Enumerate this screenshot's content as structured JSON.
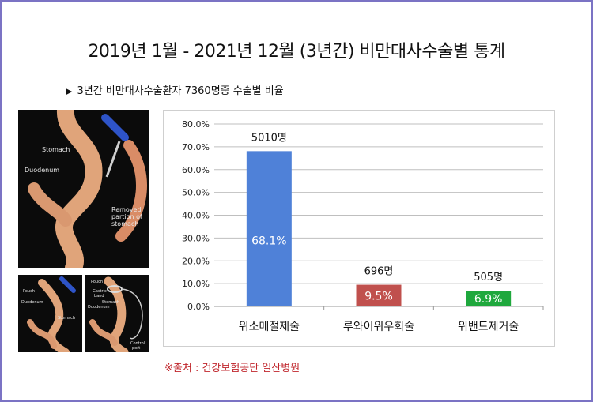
{
  "title": "2019년 1월 - 2021년 12월 (3년간) 비만대사수술별 통계",
  "subtitle": "3년간 비만대사수술환자 7360명중 수술별 비율",
  "subtitle_marker": "▶",
  "source": "※출처 : 건강보험공단 일산병원",
  "illustrations": {
    "main": {
      "stomach": "Stomach",
      "duodenum": "Duodenum",
      "removed": [
        "Removed",
        "partion of",
        "stomach"
      ]
    },
    "bypass": {
      "pouch": "Pouch",
      "duodenum": "Duodenum",
      "stomach": "Stomach"
    },
    "band": {
      "pouch": "Pouch",
      "band": [
        "Gastric",
        "band"
      ],
      "stomach": "Stomach",
      "duodenum": "Duodenum",
      "port": [
        "Control",
        "port"
      ]
    }
  },
  "chart_data": {
    "type": "bar",
    "categories": [
      "위소매절제술",
      "루와이위우회술",
      "위밴드제거술"
    ],
    "values": [
      68.1,
      9.5,
      6.9
    ],
    "value_labels": [
      "68.1%",
      "9.5%",
      "6.9%"
    ],
    "count_labels": [
      "5010명",
      "696명",
      "505명"
    ],
    "bar_colors": [
      "#4f81d8",
      "#c0504d",
      "#1fa83d"
    ],
    "yticks": [
      "0.0%",
      "10.0%",
      "20.0%",
      "30.0%",
      "40.0%",
      "50.0%",
      "60.0%",
      "70.0%",
      "80.0%"
    ],
    "ylim": [
      0,
      80
    ],
    "grid": true,
    "xlabel": "",
    "ylabel": ""
  }
}
